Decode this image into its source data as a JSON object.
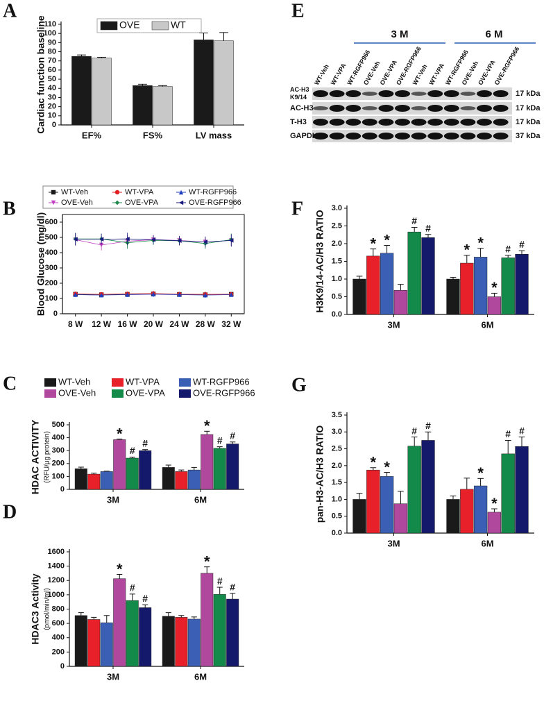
{
  "chart_data": [
    {
      "panel": "A",
      "type": "bar",
      "ylabel": "Cardiac function baseline",
      "legend": "top",
      "categories": [
        "EF%",
        "FS%",
        "LV mass"
      ],
      "series": [
        {
          "name": "OVE",
          "color": "#1a1a1a",
          "values": [
            75,
            43,
            93
          ],
          "errors": [
            1.5,
            1.5,
            7.5
          ]
        },
        {
          "name": "WT",
          "color": "#c8c8c8",
          "values": [
            73,
            42,
            92
          ],
          "errors": [
            1,
            1,
            9
          ]
        }
      ],
      "ylim": [
        0,
        110
      ],
      "yticks": [
        0,
        10,
        20,
        30,
        40,
        50,
        60,
        70,
        80,
        90,
        100,
        110
      ]
    },
    {
      "panel": "B",
      "type": "line",
      "ylabel": "Blood Glucose (mg/dl)",
      "legend": "top",
      "categories": [
        "8 W",
        "12 W",
        "16 W",
        "20 W",
        "24 W",
        "28 W",
        "32 W"
      ],
      "series": [
        {
          "name": "WT-Veh",
          "color": "#1a1a1a",
          "marker": "square",
          "values": [
            128,
            125,
            128,
            130,
            127,
            125,
            128
          ],
          "errors": [
            15,
            12,
            15,
            18,
            15,
            18,
            12
          ]
        },
        {
          "name": "WT-VPA",
          "color": "#e02020",
          "marker": "circle",
          "values": [
            130,
            127,
            130,
            132,
            128,
            127,
            127
          ],
          "errors": [
            15,
            12,
            15,
            18,
            15,
            18,
            12
          ]
        },
        {
          "name": "WT-RGFP966",
          "color": "#2040c0",
          "marker": "triangle-up",
          "values": [
            125,
            122,
            125,
            128,
            125,
            122,
            125
          ],
          "errors": [
            15,
            12,
            15,
            18,
            15,
            18,
            12
          ]
        },
        {
          "name": "OVE-Veh",
          "color": "#c040c0",
          "marker": "triangle-down",
          "values": [
            485,
            450,
            475,
            485,
            480,
            470,
            480
          ],
          "errors": [
            40,
            35,
            40,
            30,
            30,
            35,
            40
          ]
        },
        {
          "name": "OVE-VPA",
          "color": "#1a8a4a",
          "marker": "diamond",
          "values": [
            490,
            490,
            465,
            480,
            478,
            460,
            485
          ],
          "errors": [
            40,
            35,
            40,
            30,
            30,
            35,
            40
          ]
        },
        {
          "name": "OVE-RGFP966",
          "color": "#1a1a80",
          "marker": "triangle-left",
          "values": [
            488,
            488,
            490,
            485,
            478,
            470,
            480
          ],
          "errors": [
            40,
            35,
            40,
            30,
            30,
            35,
            40
          ]
        }
      ],
      "ylim": [
        0,
        650
      ],
      "yticks": [
        0,
        100,
        200,
        300,
        400,
        500,
        600
      ]
    },
    {
      "panel": "C",
      "type": "bar",
      "ylabel": "HDAC ACTIVITY",
      "ylabel_sub": "(RFU/μg protein)",
      "legend": "top",
      "categories": [
        "3M",
        "6M"
      ],
      "series": [
        {
          "name": "WT-Veh",
          "color": "#1a1a1a",
          "values": [
            160,
            170
          ],
          "errors": [
            12,
            18
          ],
          "annotations": [
            null,
            null
          ]
        },
        {
          "name": "WT-VPA",
          "color": "#e8202a",
          "values": [
            118,
            138
          ],
          "errors": [
            8,
            12
          ],
          "annotations": [
            null,
            null
          ]
        },
        {
          "name": "WT-RGFP966",
          "color": "#3b5fb5",
          "values": [
            138,
            150
          ],
          "errors": [
            3,
            20
          ],
          "annotations": [
            null,
            null
          ]
        },
        {
          "name": "OVE-Veh",
          "color": "#b0489e",
          "values": [
            385,
            425
          ],
          "errors": [
            5,
            25
          ],
          "annotations": [
            "*",
            "*"
          ]
        },
        {
          "name": "OVE-VPA",
          "color": "#138a4a",
          "values": [
            242,
            318
          ],
          "errors": [
            8,
            12
          ],
          "annotations": [
            "#",
            "#"
          ]
        },
        {
          "name": "OVE-RGFP966",
          "color": "#14196b",
          "values": [
            300,
            352
          ],
          "errors": [
            8,
            15
          ],
          "annotations": [
            "#",
            "#"
          ]
        }
      ],
      "ylim": [
        0,
        500
      ],
      "yticks": [
        0,
        100,
        200,
        300,
        400,
        500
      ]
    },
    {
      "panel": "D",
      "type": "bar",
      "ylabel": "HDAC3 Activity",
      "ylabel_sub": "(pmol/min/ml)",
      "categories": [
        "3M",
        "6M"
      ],
      "series": [
        {
          "color": "#1a1a1a",
          "values": [
            710,
            700
          ],
          "errors": [
            40,
            50
          ],
          "annotations": [
            null,
            null
          ]
        },
        {
          "color": "#e8202a",
          "values": [
            655,
            685
          ],
          "errors": [
            30,
            25
          ],
          "annotations": [
            null,
            null
          ]
        },
        {
          "color": "#3b5fb5",
          "values": [
            610,
            660
          ],
          "errors": [
            100,
            30
          ],
          "annotations": [
            null,
            null
          ]
        },
        {
          "color": "#b0489e",
          "values": [
            1225,
            1300
          ],
          "errors": [
            60,
            90
          ],
          "annotations": [
            "*",
            "*"
          ]
        },
        {
          "color": "#138a4a",
          "values": [
            920,
            1005
          ],
          "errors": [
            90,
            100
          ],
          "annotations": [
            "#",
            "#"
          ]
        },
        {
          "color": "#14196b",
          "values": [
            820,
            940
          ],
          "errors": [
            40,
            80
          ],
          "annotations": [
            "#",
            "#"
          ]
        }
      ],
      "ylim": [
        0,
        1600
      ],
      "yticks": [
        0,
        200,
        400,
        600,
        800,
        1000,
        1200,
        1400,
        1600
      ]
    },
    {
      "panel": "F",
      "type": "bar",
      "ylabel": "H3K9/14-AC/H3 RATIO",
      "categories": [
        "3M",
        "6M"
      ],
      "series": [
        {
          "color": "#1a1a1a",
          "values": [
            1.0,
            1.0
          ],
          "errors": [
            0.08,
            0.05
          ],
          "annotations": [
            null,
            null
          ]
        },
        {
          "color": "#e8202a",
          "values": [
            1.65,
            1.45
          ],
          "errors": [
            0.2,
            0.22
          ],
          "annotations": [
            "*",
            "*"
          ]
        },
        {
          "color": "#3b5fb5",
          "values": [
            1.73,
            1.62
          ],
          "errors": [
            0.22,
            0.25
          ],
          "annotations": [
            "*",
            "*"
          ]
        },
        {
          "color": "#b0489e",
          "values": [
            0.68,
            0.5
          ],
          "errors": [
            0.17,
            0.1
          ],
          "annotations": [
            null,
            "*"
          ]
        },
        {
          "color": "#138a4a",
          "values": [
            2.33,
            1.6
          ],
          "errors": [
            0.13,
            0.07
          ],
          "annotations": [
            "#",
            "#"
          ]
        },
        {
          "color": "#14196b",
          "values": [
            2.17,
            1.7
          ],
          "errors": [
            0.09,
            0.1
          ],
          "annotations": [
            "#",
            "#"
          ]
        }
      ],
      "ylim": [
        0,
        3.0
      ],
      "yticks": [
        {
          "value": 0,
          "label": "0.0"
        },
        0.5,
        {
          "value": 1,
          "label": "1.0"
        },
        1.5,
        {
          "value": 2,
          "label": "2.0"
        },
        2.5,
        {
          "value": 3,
          "label": "3.0"
        }
      ]
    },
    {
      "panel": "G",
      "type": "bar",
      "ylabel": "pan-H3-AC/H3 RATIO",
      "categories": [
        "3M",
        "6M"
      ],
      "series": [
        {
          "color": "#1a1a1a",
          "values": [
            1.0,
            1.0
          ],
          "errors": [
            0.18,
            0.1
          ],
          "annotations": [
            null,
            null
          ]
        },
        {
          "color": "#e8202a",
          "values": [
            1.87,
            1.3
          ],
          "errors": [
            0.07,
            0.33
          ],
          "annotations": [
            "*",
            null
          ]
        },
        {
          "color": "#3b5fb5",
          "values": [
            1.68,
            1.4
          ],
          "errors": [
            0.12,
            0.22
          ],
          "annotations": [
            "*",
            "*"
          ]
        },
        {
          "color": "#b0489e",
          "values": [
            0.87,
            0.62
          ],
          "errors": [
            0.37,
            0.1
          ],
          "annotations": [
            null,
            "*"
          ]
        },
        {
          "color": "#138a4a",
          "values": [
            2.58,
            2.35
          ],
          "errors": [
            0.27,
            0.4
          ],
          "annotations": [
            "#",
            "#"
          ]
        },
        {
          "color": "#14196b",
          "values": [
            2.75,
            2.57
          ],
          "errors": [
            0.25,
            0.28
          ],
          "annotations": [
            "#",
            "#"
          ]
        }
      ],
      "ylim": [
        0,
        3.5
      ],
      "yticks": [
        {
          "value": 0,
          "label": "0.0"
        },
        0.5,
        {
          "value": 1,
          "label": "1.0"
        },
        1.5,
        {
          "value": 2,
          "label": "2.0"
        },
        2.5,
        {
          "value": 3,
          "label": "3.0"
        },
        3.5
      ]
    }
  ],
  "blot": {
    "panel": "E",
    "groups": [
      "3 M",
      "6 M"
    ],
    "lanes": [
      "WT-Veh",
      "WT-VPA",
      "WT-RGFP966",
      "OVE-Veh",
      "OVE-VPA",
      "OVE-RGFP966",
      "WT-Veh",
      "WT-VPA",
      "WT-RGFP966",
      "OVE-Veh",
      "OVE-VPA",
      "OVE-RGFP966"
    ],
    "rows": [
      {
        "label": [
          "AC-H3",
          "K9/14"
        ],
        "size": "17 kDa"
      },
      {
        "label": [
          "AC-H3"
        ],
        "size": "17 kDa"
      },
      {
        "label": [
          "T-H3"
        ],
        "size": "17 kDa"
      },
      {
        "label": [
          "GAPDH"
        ],
        "size": "37 kDa"
      }
    ]
  }
}
